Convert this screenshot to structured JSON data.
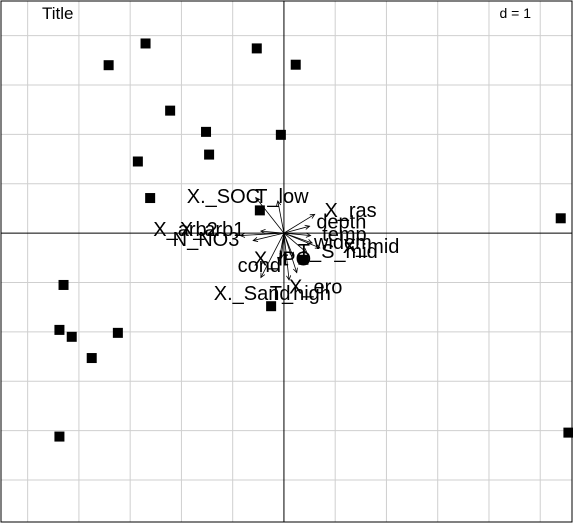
{
  "chart_data": {
    "type": "scatter",
    "title": "Title",
    "scale_label": "d = 1",
    "xlim": [
      -5.52,
      5.62
    ],
    "ylim": [
      -5.85,
      4.7
    ],
    "grid": true,
    "axes_through_origin": true,
    "points": [
      {
        "x": -2.7,
        "y": 3.84
      },
      {
        "x": -3.42,
        "y": 3.4
      },
      {
        "x": -0.53,
        "y": 3.74
      },
      {
        "x": 0.23,
        "y": 3.41
      },
      {
        "x": -2.22,
        "y": 2.48
      },
      {
        "x": -1.52,
        "y": 2.05
      },
      {
        "x": -0.06,
        "y": 1.99
      },
      {
        "x": -2.85,
        "y": 1.45
      },
      {
        "x": -1.46,
        "y": 1.59
      },
      {
        "x": -2.61,
        "y": 0.71
      },
      {
        "x": -0.47,
        "y": 0.46
      },
      {
        "x": 5.4,
        "y": 0.3
      },
      {
        "x": 0.38,
        "y": -0.54
      },
      {
        "x": -4.3,
        "y": -1.05
      },
      {
        "x": -0.25,
        "y": -1.48
      },
      {
        "x": -4.38,
        "y": -1.96
      },
      {
        "x": -4.14,
        "y": -2.1
      },
      {
        "x": -3.24,
        "y": -2.02
      },
      {
        "x": -3.75,
        "y": -2.53
      },
      {
        "x": -4.38,
        "y": -4.12
      },
      {
        "x": 5.55,
        "y": -4.04
      }
    ],
    "variables": [
      {
        "name": "X._SOC",
        "x": -0.55,
        "y": 0.72,
        "lx": -1.18,
        "ly": 0.72
      },
      {
        "name": "T_low",
        "x": -0.12,
        "y": 0.65,
        "lx": -0.04,
        "ly": 0.72
      },
      {
        "name": "X_ras",
        "x": 0.6,
        "y": 0.38,
        "lx": 1.3,
        "ly": 0.43
      },
      {
        "name": "depth",
        "x": 0.5,
        "y": 0.14,
        "lx": 1.12,
        "ly": 0.2
      },
      {
        "name": "temp",
        "x": 0.52,
        "y": -0.05,
        "lx": 1.18,
        "ly": -0.05
      },
      {
        "name": "X_arb1",
        "x": -0.45,
        "y": 0.04,
        "lx": -1.4,
        "ly": 0.05
      },
      {
        "name": "X_arb2",
        "x": -0.85,
        "y": -0.05,
        "lx": -1.92,
        "ly": 0.05
      },
      {
        "name": "N_NO3",
        "x": -0.6,
        "y": -0.15,
        "lx": -1.52,
        "ly": -0.15
      },
      {
        "name": "widem",
        "x": 0.55,
        "y": -0.2,
        "lx": 1.15,
        "ly": -0.22
      },
      {
        "name": "X_mid",
        "x": 0.7,
        "y": -0.3,
        "lx": 1.7,
        "ly": -0.3
      },
      {
        "name": "T_S_mid",
        "x": 0.45,
        "y": -0.4,
        "lx": 1.05,
        "ly": -0.4
      },
      {
        "name": "PO",
        "x": 0.18,
        "y": -0.48,
        "lx": 0.25,
        "ly": -0.55
      },
      {
        "name": "X_lt",
        "x": -0.05,
        "y": -0.5,
        "lx": -0.25,
        "ly": -0.55
      },
      {
        "name": "cond",
        "x": -0.1,
        "y": -0.58,
        "lx": -0.48,
        "ly": -0.68
      },
      {
        "name": "X_ero",
        "x": 0.25,
        "y": -0.8,
        "lx": 0.62,
        "ly": -1.12
      },
      {
        "name": "X._Sand",
        "x": -0.45,
        "y": -0.9,
        "lx": -0.62,
        "ly": -1.25
      },
      {
        "name": "T_high",
        "x": 0.1,
        "y": -0.95,
        "lx": 0.32,
        "ly": -1.25
      }
    ]
  }
}
